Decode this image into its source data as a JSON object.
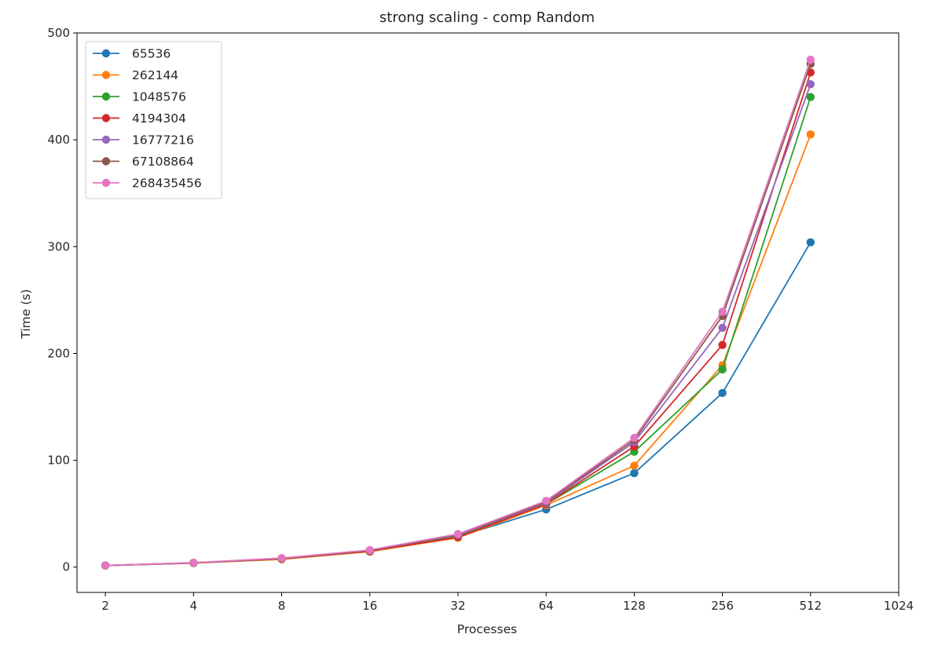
{
  "chart_data": {
    "type": "line",
    "title": "strong scaling - comp  Random",
    "xlabel": "Processes",
    "ylabel": "Time (s)",
    "x_scale": "log2",
    "xlim": [
      1.6,
      1024
    ],
    "ylim": [
      -23.7,
      500
    ],
    "x_ticks": [
      2,
      4,
      8,
      16,
      32,
      64,
      128,
      256,
      512,
      1024
    ],
    "y_ticks": [
      0,
      100,
      200,
      300,
      400,
      500
    ],
    "grid": false,
    "legend_position": "top-left",
    "x": [
      2,
      4,
      8,
      16,
      32,
      64,
      128,
      256,
      512
    ],
    "series": [
      {
        "name": "65536",
        "color": "#1f77b4",
        "values": [
          1.5,
          3.8,
          7.8,
          14.5,
          28.5,
          54,
          88,
          163,
          304
        ]
      },
      {
        "name": "262144",
        "color": "#ff7f0e",
        "values": [
          1.5,
          3.8,
          7.3,
          14.5,
          27.5,
          58,
          95,
          189,
          405
        ]
      },
      {
        "name": "1048576",
        "color": "#2ca02c",
        "values": [
          1.5,
          4.0,
          7.8,
          15.0,
          29.0,
          59,
          108,
          185,
          440
        ]
      },
      {
        "name": "4194304",
        "color": "#d62728",
        "values": [
          1.5,
          4.0,
          7.8,
          15.0,
          28.0,
          59,
          113,
          208,
          463
        ]
      },
      {
        "name": "16777216",
        "color": "#9467bd",
        "values": [
          1.5,
          4.0,
          8.0,
          15.5,
          30.0,
          60,
          117,
          224,
          452
        ]
      },
      {
        "name": "67108864",
        "color": "#8c564b",
        "values": [
          1.5,
          4.0,
          8.2,
          15.5,
          30.5,
          61,
          119,
          235,
          471
        ]
      },
      {
        "name": "268435456",
        "color": "#e377c2",
        "values": [
          1.5,
          4.2,
          8.5,
          16.0,
          31.0,
          62,
          121,
          239,
          475
        ]
      }
    ]
  }
}
